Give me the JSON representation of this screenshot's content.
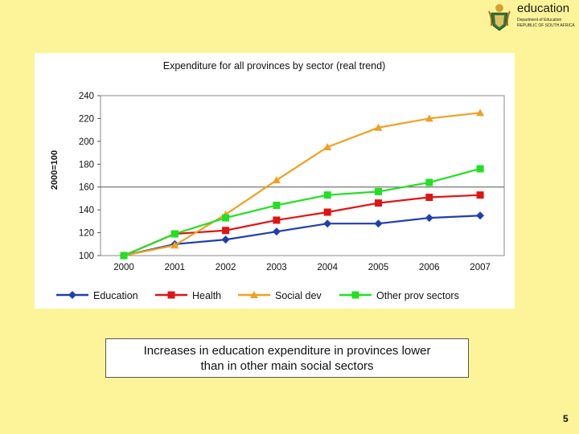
{
  "logo": {
    "wordmark": "education",
    "line1": "Department of Education",
    "line2": "REPUBLIC OF SOUTH AFRICA"
  },
  "chart_data": {
    "type": "line",
    "title": "Expenditure for all provinces by sector (real trend)",
    "xlabel": "",
    "ylabel": "2000=100",
    "categories": [
      "2000",
      "2001",
      "2002",
      "2003",
      "2004",
      "2005",
      "2006",
      "2007"
    ],
    "ylim": [
      100,
      240
    ],
    "yticks": [
      100,
      120,
      140,
      160,
      180,
      200,
      220,
      240
    ],
    "grid": "horizontal line at 160",
    "legend_position": "bottom",
    "series": [
      {
        "name": "Education",
        "color": "#1f3fb0",
        "marker": "diamond",
        "values": [
          100,
          110,
          114,
          121,
          128,
          128,
          133,
          135
        ]
      },
      {
        "name": "Health",
        "color": "#e01414",
        "marker": "square",
        "values": [
          100,
          119,
          122,
          131,
          138,
          146,
          151,
          153
        ]
      },
      {
        "name": "Social dev",
        "color": "#f0a020",
        "marker": "triangle",
        "values": [
          100,
          109,
          136,
          166,
          195,
          212,
          220,
          225
        ]
      },
      {
        "name": "Other prov sectors",
        "color": "#22e022",
        "marker": "square",
        "values": [
          100,
          119,
          133,
          144,
          153,
          156,
          164,
          176
        ]
      }
    ]
  },
  "caption": {
    "line1": "Increases in education expenditure in provinces lower",
    "line2": "than in other main social sectors"
  },
  "page_number": "5"
}
